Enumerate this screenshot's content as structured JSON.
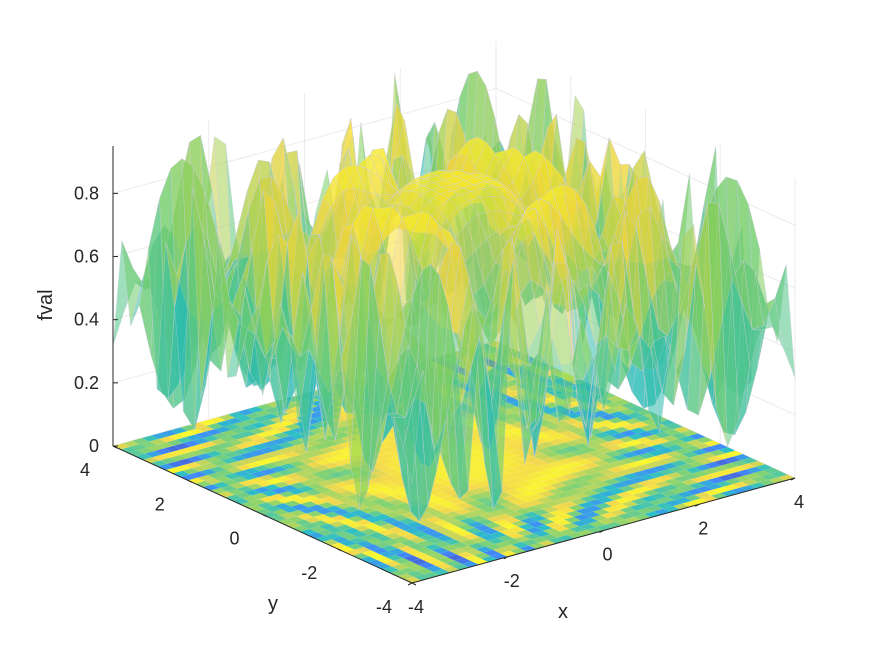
{
  "chart_data": {
    "type": "surface3d",
    "title": "",
    "xlabel": "x",
    "ylabel": "y",
    "zlabel": "fval",
    "xlim": [
      -4,
      4
    ],
    "ylim": [
      -4,
      4
    ],
    "zlim": [
      0,
      0.95
    ],
    "x_ticks": [
      "-4",
      "-2",
      "0",
      "2",
      "4"
    ],
    "y_ticks": [
      "-4",
      "-2",
      "0",
      "2",
      "4"
    ],
    "z_ticks": [
      "0",
      "0.2",
      "0.4",
      "0.6",
      "0.8"
    ],
    "x_tick_values": [
      -4,
      -2,
      0,
      2,
      4
    ],
    "y_tick_values": [
      -4,
      -2,
      0,
      2,
      4
    ],
    "z_tick_values": [
      0,
      0.2,
      0.4,
      0.6,
      0.8
    ],
    "surface": {
      "description_free": true,
      "highly_oscillatory": true,
      "value_range": [
        0,
        0.95
      ],
      "center_value": 0.88,
      "colormap": [
        "#3d26a8",
        "#2c7dfb",
        "#16b8c1",
        "#7bcf5e",
        "#f4d43a",
        "#f9fb15"
      ],
      "transparency": 0.55
    },
    "contour_on_floor": true,
    "grid": true
  }
}
